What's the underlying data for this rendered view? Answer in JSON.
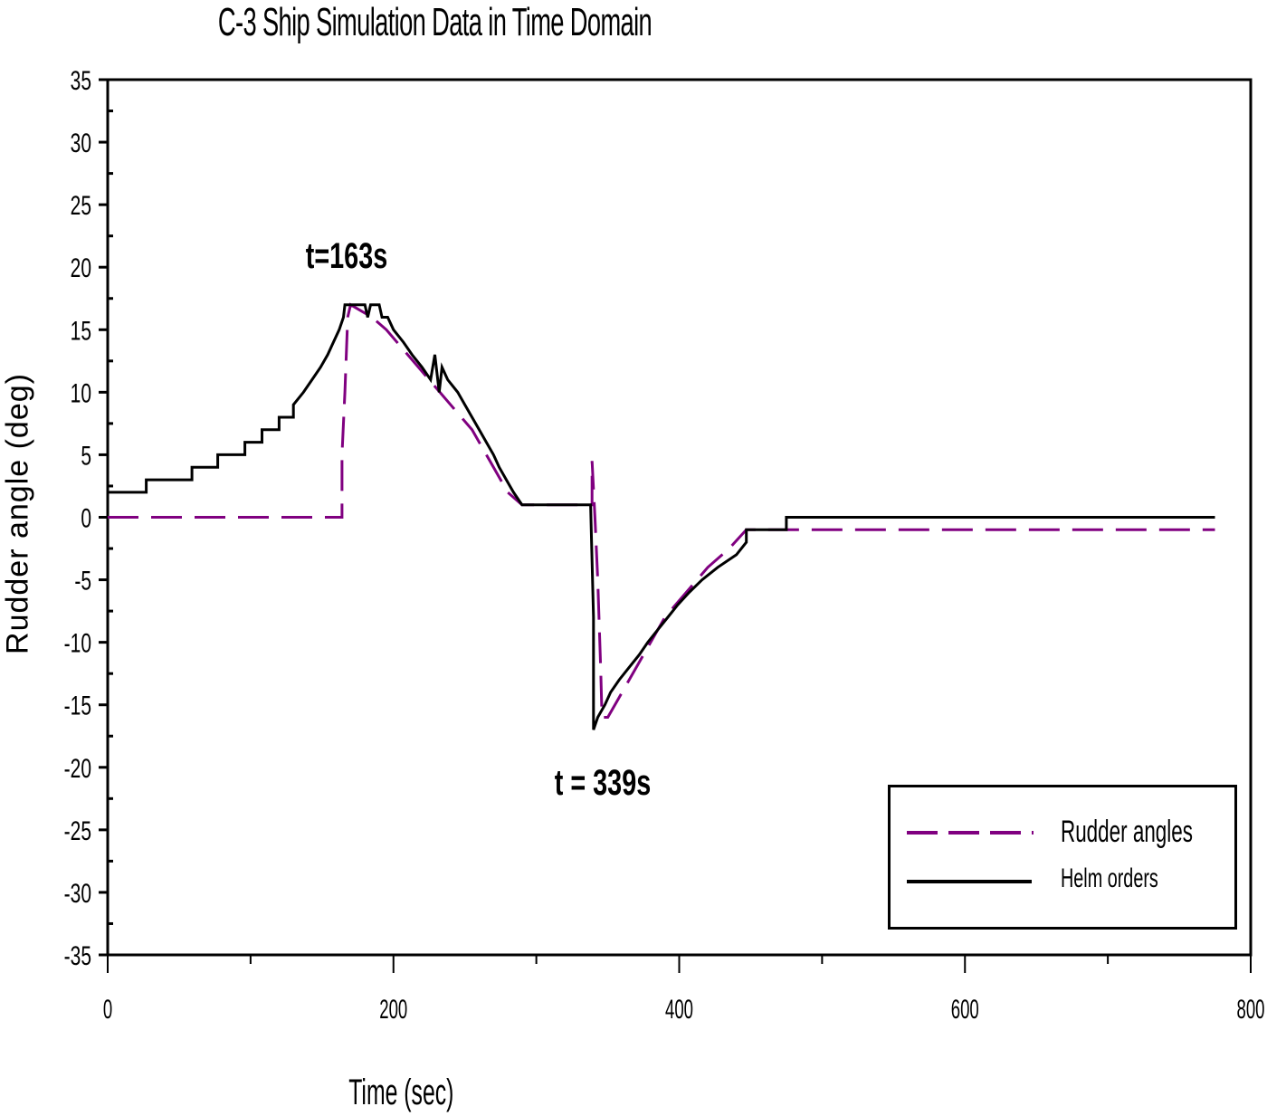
{
  "chart_data": {
    "type": "line",
    "title": "C-3 Ship Simulation Data in Time Domain",
    "xlabel": "Time (sec)",
    "ylabel": "Rudder angle (deg)",
    "xlim": [
      0,
      800
    ],
    "ylim": [
      -35,
      35
    ],
    "x_ticks": [
      "0",
      "200",
      "400",
      "600",
      "800"
    ],
    "y_ticks": [
      "35",
      "30",
      "25",
      "20",
      "15",
      "10",
      "5",
      "0",
      "-5",
      "-10",
      "-15",
      "-20",
      "-25",
      "-30",
      "-35"
    ],
    "grid": false,
    "legend_position": "lower right",
    "annotations": [
      {
        "text": "t=163s",
        "x": 163,
        "y": 20
      },
      {
        "text": "t = 339s",
        "x": 339,
        "y": -21
      }
    ],
    "series": [
      {
        "name": "Rudder angles",
        "style": "dashed",
        "color": "#800080",
        "points": [
          [
            0,
            0
          ],
          [
            164,
            0
          ],
          [
            164,
            5
          ],
          [
            166,
            10
          ],
          [
            168,
            16
          ],
          [
            170,
            17
          ],
          [
            185,
            16
          ],
          [
            195,
            15
          ],
          [
            210,
            13
          ],
          [
            225,
            11
          ],
          [
            240,
            9
          ],
          [
            255,
            7
          ],
          [
            270,
            4
          ],
          [
            280,
            2
          ],
          [
            290,
            1
          ],
          [
            339,
            1
          ],
          [
            339,
            4.5
          ],
          [
            341,
            0
          ],
          [
            343,
            -5
          ],
          [
            345,
            -12
          ],
          [
            346,
            -16
          ],
          [
            350,
            -16
          ],
          [
            360,
            -14
          ],
          [
            375,
            -11
          ],
          [
            390,
            -8
          ],
          [
            405,
            -6
          ],
          [
            420,
            -4
          ],
          [
            435,
            -2.5
          ],
          [
            447,
            -1
          ],
          [
            475,
            -1
          ],
          [
            775,
            -1
          ]
        ]
      },
      {
        "name": "Helm orders",
        "style": "solid",
        "color": "#000000",
        "points": [
          [
            0,
            2
          ],
          [
            27,
            2
          ],
          [
            27,
            3
          ],
          [
            59,
            3
          ],
          [
            59,
            4
          ],
          [
            77,
            4
          ],
          [
            77,
            5
          ],
          [
            96,
            5
          ],
          [
            96,
            6
          ],
          [
            108,
            6
          ],
          [
            108,
            7
          ],
          [
            120,
            7
          ],
          [
            120,
            8
          ],
          [
            130,
            8
          ],
          [
            130,
            9
          ],
          [
            137,
            10
          ],
          [
            143,
            11
          ],
          [
            149,
            12
          ],
          [
            154,
            13
          ],
          [
            158,
            14
          ],
          [
            162,
            15
          ],
          [
            165,
            16
          ],
          [
            166,
            17
          ],
          [
            180,
            17
          ],
          [
            182,
            16
          ],
          [
            184,
            17
          ],
          [
            190,
            17
          ],
          [
            192,
            16
          ],
          [
            196,
            16
          ],
          [
            200,
            15
          ],
          [
            207,
            14
          ],
          [
            213,
            13
          ],
          [
            220,
            12
          ],
          [
            226,
            11
          ],
          [
            229,
            13
          ],
          [
            232,
            10
          ],
          [
            234,
            12
          ],
          [
            238,
            11
          ],
          [
            245,
            10
          ],
          [
            250,
            9
          ],
          [
            255,
            8
          ],
          [
            260,
            7
          ],
          [
            265,
            6
          ],
          [
            270,
            5
          ],
          [
            274,
            4
          ],
          [
            279,
            3
          ],
          [
            284,
            2
          ],
          [
            290,
            1
          ],
          [
            338,
            1
          ],
          [
            340,
            -8
          ],
          [
            340,
            -17
          ],
          [
            343,
            -16
          ],
          [
            348,
            -15
          ],
          [
            352,
            -14
          ],
          [
            358,
            -13
          ],
          [
            365,
            -12
          ],
          [
            372,
            -11
          ],
          [
            378,
            -10
          ],
          [
            385,
            -9
          ],
          [
            392,
            -8
          ],
          [
            399,
            -7
          ],
          [
            407,
            -6
          ],
          [
            416,
            -5
          ],
          [
            427,
            -4
          ],
          [
            440,
            -3
          ],
          [
            447,
            -2
          ],
          [
            447,
            -1
          ],
          [
            475,
            -1
          ],
          [
            475,
            0
          ],
          [
            775,
            0
          ]
        ]
      }
    ]
  },
  "legend": {
    "items": [
      {
        "label": "Rudder angles",
        "color": "#800080",
        "style": "dashed"
      },
      {
        "label": "Helm orders",
        "color": "#000000",
        "style": "solid"
      }
    ]
  }
}
